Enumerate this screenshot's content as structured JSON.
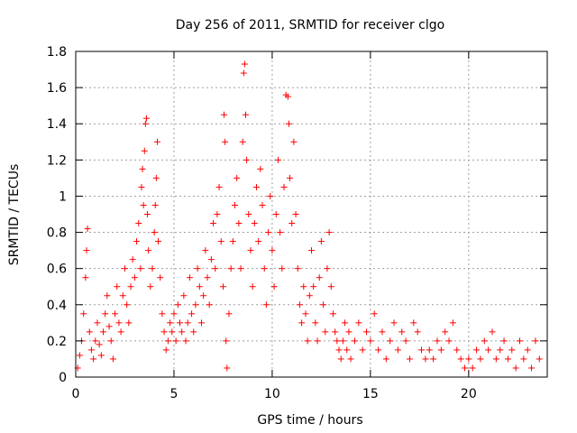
{
  "chart_data": {
    "type": "scatter",
    "title": "Day 256 of 2011, SRMTID for receiver clgo",
    "xlabel": "GPS time / hours",
    "ylabel": "SRMTID / TECUs",
    "xlim": [
      0,
      24
    ],
    "ylim": [
      0,
      1.8
    ],
    "xticks": [
      0,
      5,
      10,
      15,
      20
    ],
    "xtick_labels": [
      "0",
      "5",
      "10",
      "15",
      "20"
    ],
    "yticks": [
      0,
      0.2,
      0.4,
      0.6,
      0.8,
      1.0,
      1.2,
      1.4,
      1.6,
      1.8
    ],
    "ytick_labels": [
      "0",
      "0.2",
      "0.4",
      "0.6",
      "0.8",
      "1",
      "1.2",
      "1.4",
      "1.6",
      "1.8"
    ],
    "grid": true,
    "marker": "+",
    "series": [
      {
        "name": "SRMTID",
        "color": "#ff0000",
        "points": [
          [
            0.1,
            0.05
          ],
          [
            0.2,
            0.12
          ],
          [
            0.3,
            0.2
          ],
          [
            0.4,
            0.35
          ],
          [
            0.5,
            0.55
          ],
          [
            0.55,
            0.7
          ],
          [
            0.6,
            0.82
          ],
          [
            0.7,
            0.25
          ],
          [
            0.8,
            0.15
          ],
          [
            0.9,
            0.1
          ],
          [
            1.0,
            0.2
          ],
          [
            1.1,
            0.3
          ],
          [
            1.2,
            0.18
          ],
          [
            1.3,
            0.12
          ],
          [
            1.4,
            0.25
          ],
          [
            1.5,
            0.35
          ],
          [
            1.6,
            0.45
          ],
          [
            1.7,
            0.28
          ],
          [
            1.8,
            0.2
          ],
          [
            1.9,
            0.1
          ],
          [
            2.0,
            0.35
          ],
          [
            2.1,
            0.5
          ],
          [
            2.2,
            0.3
          ],
          [
            2.3,
            0.25
          ],
          [
            2.4,
            0.45
          ],
          [
            2.5,
            0.6
          ],
          [
            2.6,
            0.4
          ],
          [
            2.7,
            0.3
          ],
          [
            2.8,
            0.5
          ],
          [
            2.9,
            0.65
          ],
          [
            3.0,
            0.55
          ],
          [
            3.1,
            0.75
          ],
          [
            3.2,
            0.85
          ],
          [
            3.3,
            0.6
          ],
          [
            3.35,
            1.05
          ],
          [
            3.4,
            1.15
          ],
          [
            3.45,
            0.95
          ],
          [
            3.5,
            1.25
          ],
          [
            3.55,
            1.4
          ],
          [
            3.6,
            1.43
          ],
          [
            3.65,
            0.9
          ],
          [
            3.7,
            0.7
          ],
          [
            3.8,
            0.5
          ],
          [
            3.9,
            0.6
          ],
          [
            4.0,
            0.8
          ],
          [
            4.05,
            0.95
          ],
          [
            4.1,
            1.1
          ],
          [
            4.15,
            1.3
          ],
          [
            4.2,
            0.75
          ],
          [
            4.3,
            0.55
          ],
          [
            4.4,
            0.35
          ],
          [
            4.5,
            0.25
          ],
          [
            4.6,
            0.15
          ],
          [
            4.7,
            0.2
          ],
          [
            4.8,
            0.3
          ],
          [
            4.9,
            0.25
          ],
          [
            5.0,
            0.35
          ],
          [
            5.1,
            0.2
          ],
          [
            5.2,
            0.4
          ],
          [
            5.3,
            0.3
          ],
          [
            5.4,
            0.25
          ],
          [
            5.5,
            0.45
          ],
          [
            5.6,
            0.2
          ],
          [
            5.7,
            0.3
          ],
          [
            5.8,
            0.55
          ],
          [
            5.9,
            0.35
          ],
          [
            6.0,
            0.25
          ],
          [
            6.1,
            0.4
          ],
          [
            6.2,
            0.6
          ],
          [
            6.3,
            0.5
          ],
          [
            6.4,
            0.3
          ],
          [
            6.5,
            0.45
          ],
          [
            6.6,
            0.7
          ],
          [
            6.7,
            0.55
          ],
          [
            6.8,
            0.4
          ],
          [
            6.9,
            0.65
          ],
          [
            7.0,
            0.85
          ],
          [
            7.1,
            0.6
          ],
          [
            7.2,
            0.9
          ],
          [
            7.3,
            1.05
          ],
          [
            7.4,
            0.75
          ],
          [
            7.5,
            0.5
          ],
          [
            7.55,
            1.45
          ],
          [
            7.6,
            1.3
          ],
          [
            7.65,
            0.2
          ],
          [
            7.7,
            0.05
          ],
          [
            7.8,
            0.35
          ],
          [
            7.9,
            0.6
          ],
          [
            8.0,
            0.75
          ],
          [
            8.1,
            0.95
          ],
          [
            8.2,
            1.1
          ],
          [
            8.3,
            0.85
          ],
          [
            8.4,
            0.6
          ],
          [
            8.5,
            1.3
          ],
          [
            8.55,
            1.68
          ],
          [
            8.6,
            1.73
          ],
          [
            8.65,
            1.45
          ],
          [
            8.7,
            1.2
          ],
          [
            8.8,
            0.9
          ],
          [
            8.9,
            0.7
          ],
          [
            9.0,
            0.5
          ],
          [
            9.1,
            0.85
          ],
          [
            9.2,
            1.05
          ],
          [
            9.3,
            0.75
          ],
          [
            9.4,
            1.15
          ],
          [
            9.5,
            0.95
          ],
          [
            9.6,
            0.6
          ],
          [
            9.7,
            0.4
          ],
          [
            9.8,
            0.8
          ],
          [
            9.9,
            1.0
          ],
          [
            10.0,
            0.7
          ],
          [
            10.1,
            0.5
          ],
          [
            10.2,
            0.9
          ],
          [
            10.3,
            1.2
          ],
          [
            10.4,
            0.8
          ],
          [
            10.5,
            0.6
          ],
          [
            10.6,
            1.05
          ],
          [
            10.7,
            1.56
          ],
          [
            10.8,
            1.55
          ],
          [
            10.85,
            1.4
          ],
          [
            10.9,
            1.1
          ],
          [
            11.0,
            0.85
          ],
          [
            11.1,
            1.3
          ],
          [
            11.2,
            0.9
          ],
          [
            11.3,
            0.6
          ],
          [
            11.4,
            0.4
          ],
          [
            11.5,
            0.3
          ],
          [
            11.6,
            0.5
          ],
          [
            11.7,
            0.35
          ],
          [
            11.8,
            0.2
          ],
          [
            11.9,
            0.45
          ],
          [
            12.0,
            0.7
          ],
          [
            12.1,
            0.5
          ],
          [
            12.2,
            0.3
          ],
          [
            12.3,
            0.2
          ],
          [
            12.4,
            0.55
          ],
          [
            12.5,
            0.75
          ],
          [
            12.6,
            0.4
          ],
          [
            12.7,
            0.25
          ],
          [
            12.8,
            0.6
          ],
          [
            12.9,
            0.8
          ],
          [
            13.0,
            0.5
          ],
          [
            13.1,
            0.35
          ],
          [
            13.2,
            0.25
          ],
          [
            13.3,
            0.2
          ],
          [
            13.4,
            0.15
          ],
          [
            13.5,
            0.1
          ],
          [
            13.6,
            0.2
          ],
          [
            13.7,
            0.3
          ],
          [
            13.8,
            0.15
          ],
          [
            13.9,
            0.25
          ],
          [
            14.0,
            0.1
          ],
          [
            14.2,
            0.2
          ],
          [
            14.4,
            0.3
          ],
          [
            14.6,
            0.15
          ],
          [
            14.8,
            0.25
          ],
          [
            15.0,
            0.2
          ],
          [
            15.2,
            0.35
          ],
          [
            15.4,
            0.15
          ],
          [
            15.6,
            0.25
          ],
          [
            15.8,
            0.1
          ],
          [
            16.0,
            0.2
          ],
          [
            16.2,
            0.3
          ],
          [
            16.4,
            0.15
          ],
          [
            16.6,
            0.25
          ],
          [
            16.8,
            0.2
          ],
          [
            17.0,
            0.1
          ],
          [
            17.2,
            0.3
          ],
          [
            17.4,
            0.25
          ],
          [
            17.6,
            0.15
          ],
          [
            17.8,
            0.1
          ],
          [
            18.0,
            0.15
          ],
          [
            18.2,
            0.1
          ],
          [
            18.4,
            0.2
          ],
          [
            18.6,
            0.15
          ],
          [
            18.8,
            0.25
          ],
          [
            19.0,
            0.2
          ],
          [
            19.2,
            0.3
          ],
          [
            19.4,
            0.15
          ],
          [
            19.6,
            0.1
          ],
          [
            19.8,
            0.05
          ],
          [
            20.0,
            0.1
          ],
          [
            20.2,
            0.05
          ],
          [
            20.4,
            0.15
          ],
          [
            20.6,
            0.1
          ],
          [
            20.8,
            0.2
          ],
          [
            21.0,
            0.15
          ],
          [
            21.2,
            0.25
          ],
          [
            21.4,
            0.1
          ],
          [
            21.6,
            0.15
          ],
          [
            21.8,
            0.2
          ],
          [
            22.0,
            0.1
          ],
          [
            22.2,
            0.15
          ],
          [
            22.4,
            0.05
          ],
          [
            22.6,
            0.2
          ],
          [
            22.8,
            0.1
          ],
          [
            23.0,
            0.15
          ],
          [
            23.2,
            0.05
          ],
          [
            23.4,
            0.2
          ],
          [
            23.6,
            0.1
          ]
        ]
      }
    ]
  }
}
